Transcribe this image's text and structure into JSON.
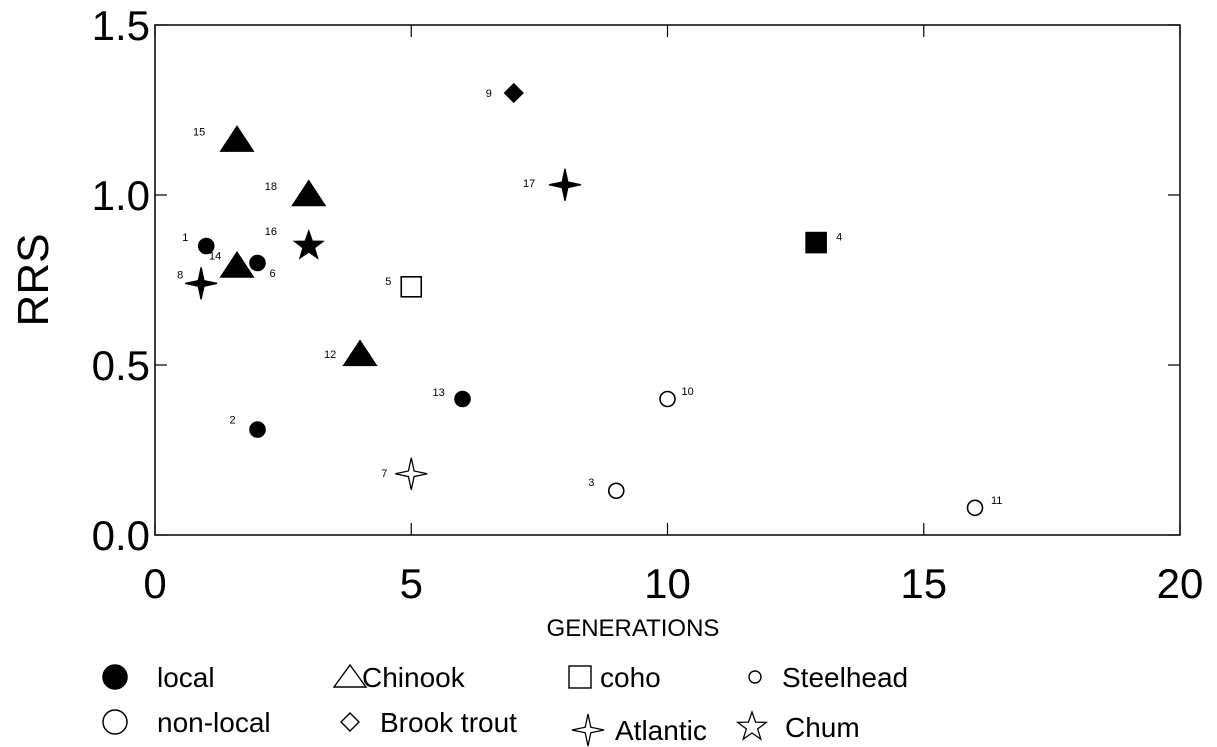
{
  "chart_data": {
    "type": "scatter",
    "xlabel": "GENERATIONS",
    "ylabel": "RRS",
    "xlim": [
      0,
      20
    ],
    "ylim": [
      0,
      1.5
    ],
    "x_ticks": [
      "0",
      "5",
      "10",
      "15",
      "20"
    ],
    "y_ticks": [
      "0.0",
      "0.5",
      "1.0",
      "1.5"
    ],
    "grid": false,
    "points": [
      {
        "label": "1",
        "x": 1.0,
        "y": 0.85,
        "species": "Steelhead",
        "origin": "local"
      },
      {
        "label": "2",
        "x": 2.0,
        "y": 0.31,
        "species": "Steelhead",
        "origin": "local"
      },
      {
        "label": "3",
        "x": 9.0,
        "y": 0.13,
        "species": "Steelhead",
        "origin": "non-local"
      },
      {
        "label": "4",
        "x": 12.9,
        "y": 0.86,
        "species": "coho",
        "origin": "local"
      },
      {
        "label": "5",
        "x": 5.0,
        "y": 0.73,
        "species": "coho",
        "origin": "non-local"
      },
      {
        "label": "6",
        "x": 2.0,
        "y": 0.8,
        "species": "Steelhead",
        "origin": "local"
      },
      {
        "label": "7",
        "x": 5.0,
        "y": 0.18,
        "species": "Atlantic",
        "origin": "non-local"
      },
      {
        "label": "8",
        "x": 0.9,
        "y": 0.74,
        "species": "Atlantic",
        "origin": "local"
      },
      {
        "label": "9",
        "x": 7.0,
        "y": 1.3,
        "species": "Brook trout",
        "origin": "local"
      },
      {
        "label": "10",
        "x": 10.0,
        "y": 0.4,
        "species": "Steelhead",
        "origin": "non-local"
      },
      {
        "label": "11",
        "x": 16.0,
        "y": 0.08,
        "species": "Steelhead",
        "origin": "non-local"
      },
      {
        "label": "12",
        "x": 4.0,
        "y": 0.53,
        "species": "Chinook",
        "origin": "local"
      },
      {
        "label": "13",
        "x": 6.0,
        "y": 0.4,
        "species": "Steelhead",
        "origin": "local"
      },
      {
        "label": "14",
        "x": 1.6,
        "y": 0.79,
        "species": "Chinook",
        "origin": "local"
      },
      {
        "label": "15",
        "x": 1.6,
        "y": 1.16,
        "species": "Chinook",
        "origin": "local"
      },
      {
        "label": "16",
        "x": 3.0,
        "y": 0.85,
        "species": "Chum",
        "origin": "local"
      },
      {
        "label": "17",
        "x": 8.0,
        "y": 1.03,
        "species": "Atlantic",
        "origin": "local"
      },
      {
        "label": "18",
        "x": 3.0,
        "y": 1.0,
        "species": "Chinook",
        "origin": "local"
      }
    ],
    "legend": {
      "placement": "bottom",
      "origin_entries": [
        {
          "key": "local",
          "text": "local"
        },
        {
          "key": "non-local",
          "text": "non-local"
        }
      ],
      "species_entries": [
        {
          "key": "Chinook",
          "text": "Chinook"
        },
        {
          "key": "coho",
          "text": "coho"
        },
        {
          "key": "Steelhead",
          "text": "Steelhead"
        },
        {
          "key": "Brook trout",
          "text": "Brook trout"
        },
        {
          "key": "Atlantic",
          "text": "Atlantic"
        },
        {
          "key": "Chum",
          "text": "Chum"
        }
      ]
    }
  }
}
